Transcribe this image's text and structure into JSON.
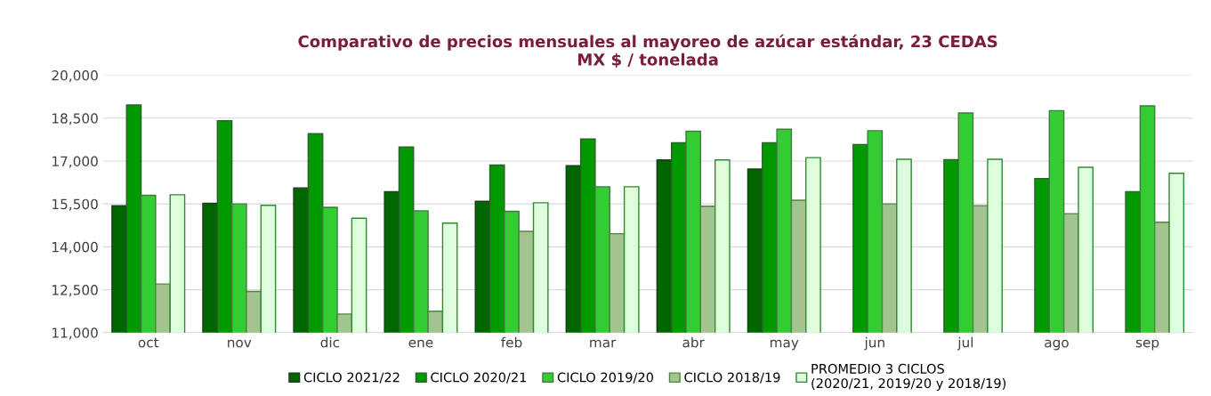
{
  "chart_data": {
    "type": "bar",
    "title": "Comparativo de precios mensuales al mayoreo de azúcar estándar, 23 CEDAS\nMX $ / tonelada",
    "categories": [
      "oct",
      "nov",
      "dic",
      "ene",
      "feb",
      "mar",
      "abr",
      "may",
      "jun",
      "jul",
      "ago",
      "sep"
    ],
    "series": [
      {
        "name": "CICLO 2021/22",
        "color": "#006600",
        "values": [
          15440,
          15520,
          16060,
          15930,
          15590,
          16840,
          17040,
          16720,
          null,
          null,
          null,
          null
        ]
      },
      {
        "name": "CICLO 2020/21",
        "color": "#009900",
        "values": [
          18960,
          18410,
          17960,
          17490,
          16860,
          17770,
          17640,
          17640,
          17580,
          17050,
          16390,
          15930
        ]
      },
      {
        "name": "CICLO 2019/20",
        "color": "#33cc33",
        "values": [
          15800,
          15500,
          15380,
          15260,
          15240,
          16100,
          18040,
          18110,
          18060,
          18680,
          18760,
          18930
        ]
      },
      {
        "name": "CICLO 2018/19",
        "color": "#a3c491",
        "values": [
          12700,
          12440,
          11650,
          11750,
          14540,
          14460,
          15420,
          15630,
          15500,
          15440,
          15160,
          14860
        ]
      },
      {
        "name": "PROMEDIO 3 CICLOS\n(2020/21, 2019/20 y 2018/19)",
        "color": "#ddfddd",
        "values": [
          15820,
          15450,
          15000,
          14830,
          15540,
          16100,
          17040,
          17120,
          17060,
          17060,
          16780,
          16570
        ]
      }
    ],
    "ylim": [
      11000,
      20000
    ],
    "yticks": [
      {
        "value": 11000,
        "label": "11,000"
      },
      {
        "value": 12500,
        "label": "12,500"
      },
      {
        "value": 14000,
        "label": "14,000"
      },
      {
        "value": 15500,
        "label": "15,500"
      },
      {
        "value": 17000,
        "label": "17,000"
      },
      {
        "value": 18500,
        "label": "18,500"
      },
      {
        "value": 20000,
        "label": "20,000"
      }
    ],
    "grid": "y",
    "legend": "bottom"
  }
}
